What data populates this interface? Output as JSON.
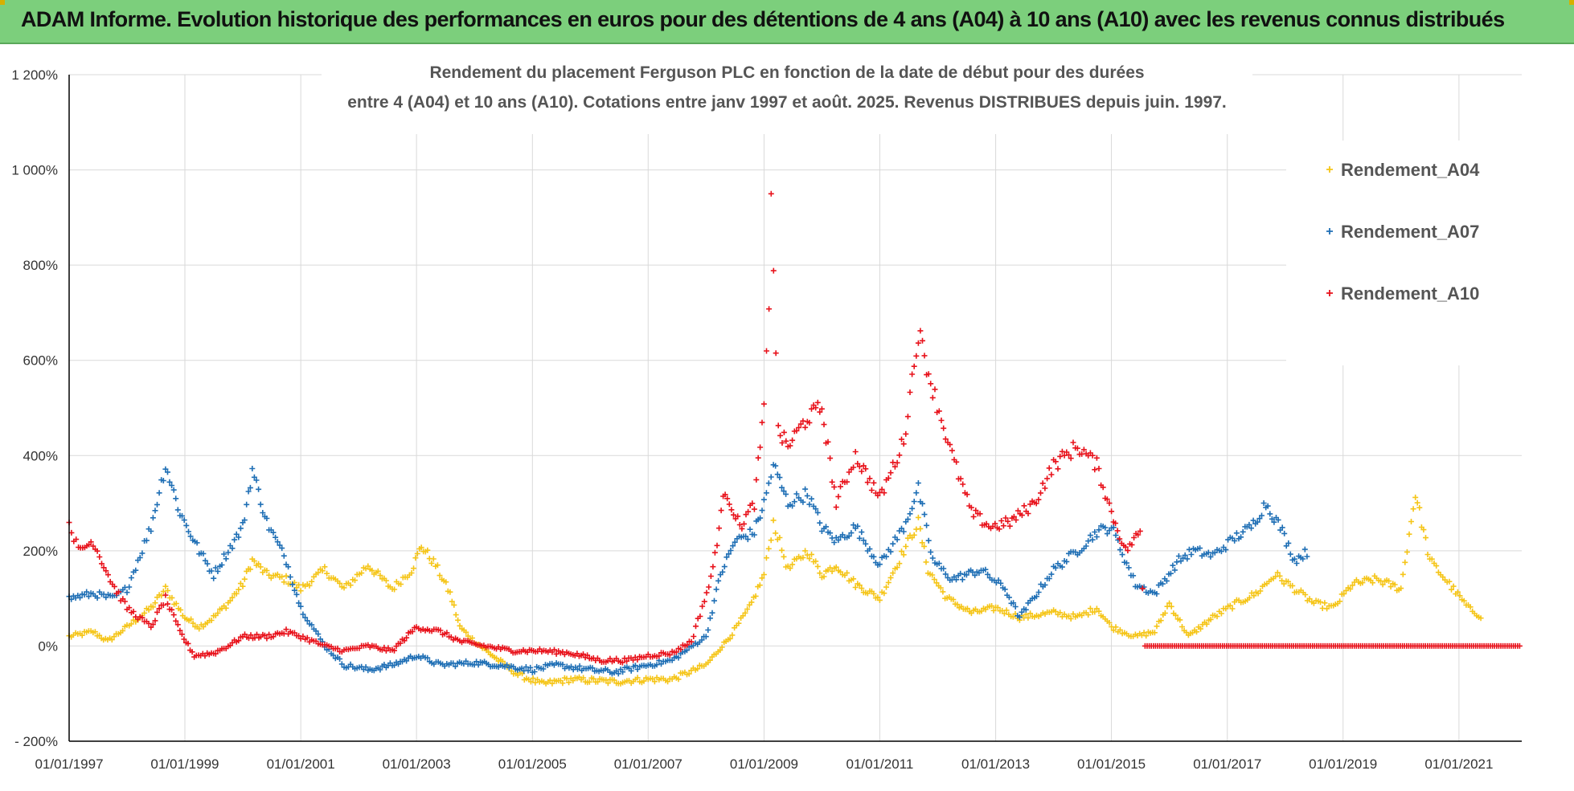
{
  "header": {
    "title": "ADAM Informe. Evolution historique des performances en euros pour des détentions de 4 ans (A04) à 10 ans (A10) avec les revenus connus distribués"
  },
  "colors": {
    "header_bg": "#7ccf7c",
    "A04": "#f5c518",
    "A07": "#1f6fb5",
    "A10": "#e8121b",
    "grid": "#d9d9d9"
  },
  "chart_data": {
    "type": "scatter",
    "title_line1": "Rendement du placement Ferguson PLC en fonction de la date de début pour des durées",
    "title_line2": "entre 4 (A04) et 10 ans (A10).  Cotations entre janv 1997 et août. 2025. Revenus DISTRIBUES depuis juin. 1997.",
    "xlabel": "",
    "ylabel": "",
    "x_range": [
      "1997-01-01",
      "2022-02-01"
    ],
    "x_ticks": [
      "01/01/1997",
      "01/01/1999",
      "01/01/2001",
      "01/01/2003",
      "01/01/2005",
      "01/01/2007",
      "01/01/2009",
      "01/01/2011",
      "01/01/2013",
      "01/01/2015",
      "01/01/2017",
      "01/01/2019",
      "01/01/2021"
    ],
    "y_range": [
      -200,
      1200
    ],
    "y_ticks": [
      {
        "value": -200,
        "label": "- 200%"
      },
      {
        "value": 0,
        "label": "0%"
      },
      {
        "value": 200,
        "label": "200%"
      },
      {
        "value": 400,
        "label": "400%"
      },
      {
        "value": 600,
        "label": "600%"
      },
      {
        "value": 800,
        "label": "800%"
      },
      {
        "value": 1000,
        "label": "1 000%"
      },
      {
        "value": 1200,
        "label": "1 200%"
      }
    ],
    "grid": true,
    "legend_position": "right",
    "marker": "+",
    "series": [
      {
        "name": "Rendement_A04",
        "key": "A04",
        "points": [
          [
            "1997-01-01",
            20
          ],
          [
            "1997-06-01",
            30
          ],
          [
            "1997-09-01",
            10
          ],
          [
            "1998-01-01",
            40
          ],
          [
            "1998-06-01",
            80
          ],
          [
            "1998-09-01",
            120
          ],
          [
            "1999-01-01",
            60
          ],
          [
            "1999-04-01",
            40
          ],
          [
            "1999-07-01",
            60
          ],
          [
            "1999-10-01",
            90
          ],
          [
            "2000-01-01",
            130
          ],
          [
            "2000-03-01",
            180
          ],
          [
            "2000-06-01",
            150
          ],
          [
            "2000-10-01",
            140
          ],
          [
            "2001-01-01",
            120
          ],
          [
            "2001-06-01",
            160
          ],
          [
            "2001-10-01",
            120
          ],
          [
            "2002-03-01",
            170
          ],
          [
            "2002-08-01",
            120
          ],
          [
            "2002-12-01",
            160
          ],
          [
            "2003-02-01",
            210
          ],
          [
            "2003-05-01",
            170
          ],
          [
            "2003-08-01",
            110
          ],
          [
            "2003-10-01",
            40
          ],
          [
            "2004-01-01",
            10
          ],
          [
            "2004-06-01",
            -30
          ],
          [
            "2004-10-01",
            -60
          ],
          [
            "2005-03-01",
            -80
          ],
          [
            "2005-09-01",
            -70
          ],
          [
            "2006-06-01",
            -75
          ],
          [
            "2007-01-01",
            -70
          ],
          [
            "2007-06-01",
            -70
          ],
          [
            "2008-01-01",
            -40
          ],
          [
            "2008-06-01",
            20
          ],
          [
            "2008-10-01",
            80
          ],
          [
            "2009-01-01",
            150
          ],
          [
            "2009-03-01",
            260
          ],
          [
            "2009-06-01",
            160
          ],
          [
            "2009-10-01",
            200
          ],
          [
            "2010-01-01",
            150
          ],
          [
            "2010-04-01",
            170
          ],
          [
            "2010-08-01",
            130
          ],
          [
            "2011-01-01",
            100
          ],
          [
            "2011-06-01",
            200
          ],
          [
            "2011-09-01",
            260
          ],
          [
            "2011-11-01",
            160
          ],
          [
            "2012-03-01",
            100
          ],
          [
            "2012-08-01",
            70
          ],
          [
            "2013-01-01",
            80
          ],
          [
            "2013-06-01",
            60
          ],
          [
            "2014-01-01",
            70
          ],
          [
            "2014-06-01",
            60
          ],
          [
            "2014-10-01",
            80
          ],
          [
            "2015-01-01",
            40
          ],
          [
            "2015-06-01",
            20
          ],
          [
            "2015-10-01",
            30
          ],
          [
            "2016-01-01",
            90
          ],
          [
            "2016-05-01",
            20
          ],
          [
            "2016-10-01",
            60
          ],
          [
            "2017-03-01",
            90
          ],
          [
            "2017-07-01",
            110
          ],
          [
            "2017-11-01",
            150
          ],
          [
            "2018-03-01",
            120
          ],
          [
            "2018-07-01",
            90
          ],
          [
            "2018-11-01",
            80
          ],
          [
            "2019-03-01",
            130
          ],
          [
            "2019-08-01",
            140
          ],
          [
            "2020-01-01",
            120
          ],
          [
            "2020-04-01",
            320
          ],
          [
            "2020-07-01",
            180
          ],
          [
            "2020-11-01",
            130
          ],
          [
            "2021-03-01",
            80
          ],
          [
            "2021-06-01",
            60
          ]
        ]
      },
      {
        "name": "Rendement_A07",
        "key": "A07",
        "points": [
          [
            "1997-01-01",
            100
          ],
          [
            "1997-06-01",
            110
          ],
          [
            "1997-10-01",
            100
          ],
          [
            "1998-01-01",
            120
          ],
          [
            "1998-06-01",
            250
          ],
          [
            "1998-09-01",
            380
          ],
          [
            "1998-12-01",
            280
          ],
          [
            "1999-04-01",
            200
          ],
          [
            "1999-07-01",
            150
          ],
          [
            "1999-10-01",
            200
          ],
          [
            "2000-01-01",
            250
          ],
          [
            "2000-03-01",
            370
          ],
          [
            "2000-06-01",
            260
          ],
          [
            "2000-10-01",
            180
          ],
          [
            "2001-01-01",
            80
          ],
          [
            "2001-06-01",
            0
          ],
          [
            "2001-10-01",
            -40
          ],
          [
            "2002-03-01",
            -50
          ],
          [
            "2002-08-01",
            -40
          ],
          [
            "2003-01-01",
            -20
          ],
          [
            "2003-06-01",
            -40
          ],
          [
            "2004-01-01",
            -35
          ],
          [
            "2004-06-01",
            -40
          ],
          [
            "2005-01-01",
            -50
          ],
          [
            "2005-06-01",
            -40
          ],
          [
            "2006-01-01",
            -50
          ],
          [
            "2006-06-01",
            -55
          ],
          [
            "2007-01-01",
            -40
          ],
          [
            "2007-06-01",
            -30
          ],
          [
            "2008-01-01",
            20
          ],
          [
            "2008-04-01",
            150
          ],
          [
            "2008-07-01",
            220
          ],
          [
            "2008-11-01",
            240
          ],
          [
            "2009-01-01",
            300
          ],
          [
            "2009-03-01",
            380
          ],
          [
            "2009-06-01",
            300
          ],
          [
            "2009-10-01",
            320
          ],
          [
            "2010-01-01",
            250
          ],
          [
            "2010-04-01",
            220
          ],
          [
            "2010-08-01",
            250
          ],
          [
            "2011-01-01",
            170
          ],
          [
            "2011-06-01",
            250
          ],
          [
            "2011-09-01",
            330
          ],
          [
            "2011-12-01",
            180
          ],
          [
            "2012-04-01",
            140
          ],
          [
            "2012-10-01",
            160
          ],
          [
            "2013-03-01",
            120
          ],
          [
            "2013-06-01",
            60
          ],
          [
            "2014-01-01",
            160
          ],
          [
            "2014-06-01",
            200
          ],
          [
            "2014-10-01",
            240
          ],
          [
            "2015-01-01",
            250
          ],
          [
            "2015-06-01",
            130
          ],
          [
            "2015-10-01",
            110
          ],
          [
            "2016-03-01",
            180
          ],
          [
            "2016-06-01",
            200
          ],
          [
            "2016-10-01",
            190
          ],
          [
            "2017-03-01",
            230
          ],
          [
            "2017-06-01",
            250
          ],
          [
            "2017-09-01",
            300
          ],
          [
            "2017-12-01",
            250
          ],
          [
            "2018-03-01",
            180
          ],
          [
            "2018-06-01",
            200
          ]
        ]
      },
      {
        "name": "Rendement_A10",
        "key": "A10",
        "points": [
          [
            "1997-01-01",
            260
          ],
          [
            "1997-03-01",
            200
          ],
          [
            "1997-06-01",
            220
          ],
          [
            "1997-10-01",
            130
          ],
          [
            "1998-01-01",
            80
          ],
          [
            "1998-06-01",
            40
          ],
          [
            "1998-09-01",
            100
          ],
          [
            "1998-12-01",
            30
          ],
          [
            "1999-03-01",
            -20
          ],
          [
            "1999-07-01",
            -15
          ],
          [
            "1999-10-01",
            0
          ],
          [
            "2000-01-01",
            20
          ],
          [
            "2000-06-01",
            20
          ],
          [
            "2000-10-01",
            30
          ],
          [
            "2001-01-01",
            20
          ],
          [
            "2001-06-01",
            0
          ],
          [
            "2001-10-01",
            -10
          ],
          [
            "2002-03-01",
            0
          ],
          [
            "2002-08-01",
            -10
          ],
          [
            "2003-01-01",
            40
          ],
          [
            "2003-06-01",
            30
          ],
          [
            "2003-10-01",
            10
          ],
          [
            "2004-03-01",
            0
          ],
          [
            "2004-09-01",
            -10
          ],
          [
            "2005-03-01",
            -10
          ],
          [
            "2005-09-01",
            -15
          ],
          [
            "2006-03-01",
            -30
          ],
          [
            "2006-09-01",
            -30
          ],
          [
            "2007-01-01",
            -20
          ],
          [
            "2007-06-01",
            -15
          ],
          [
            "2007-10-01",
            10
          ],
          [
            "2008-02-01",
            140
          ],
          [
            "2008-05-01",
            330
          ],
          [
            "2008-08-01",
            250
          ],
          [
            "2008-11-01",
            300
          ],
          [
            "2009-01-01",
            500
          ],
          [
            "2009-02-01",
            700
          ],
          [
            "2009-02-15",
            975
          ],
          [
            "2009-04-01",
            450
          ],
          [
            "2009-06-01",
            420
          ],
          [
            "2009-10-01",
            480
          ],
          [
            "2010-01-01",
            500
          ],
          [
            "2010-04-01",
            300
          ],
          [
            "2010-08-01",
            400
          ],
          [
            "2011-01-01",
            310
          ],
          [
            "2011-06-01",
            430
          ],
          [
            "2011-09-01",
            660
          ],
          [
            "2011-12-01",
            540
          ],
          [
            "2012-04-01",
            400
          ],
          [
            "2012-08-01",
            280
          ],
          [
            "2012-12-01",
            250
          ],
          [
            "2013-04-01",
            260
          ],
          [
            "2013-09-01",
            300
          ],
          [
            "2014-01-01",
            380
          ],
          [
            "2014-06-01",
            420
          ],
          [
            "2014-10-01",
            380
          ],
          [
            "2015-01-01",
            280
          ],
          [
            "2015-04-01",
            200
          ],
          [
            "2015-07-01",
            240
          ],
          [
            "2015-08-01",
            0
          ],
          [
            "2022-02-01",
            0
          ]
        ]
      }
    ]
  }
}
